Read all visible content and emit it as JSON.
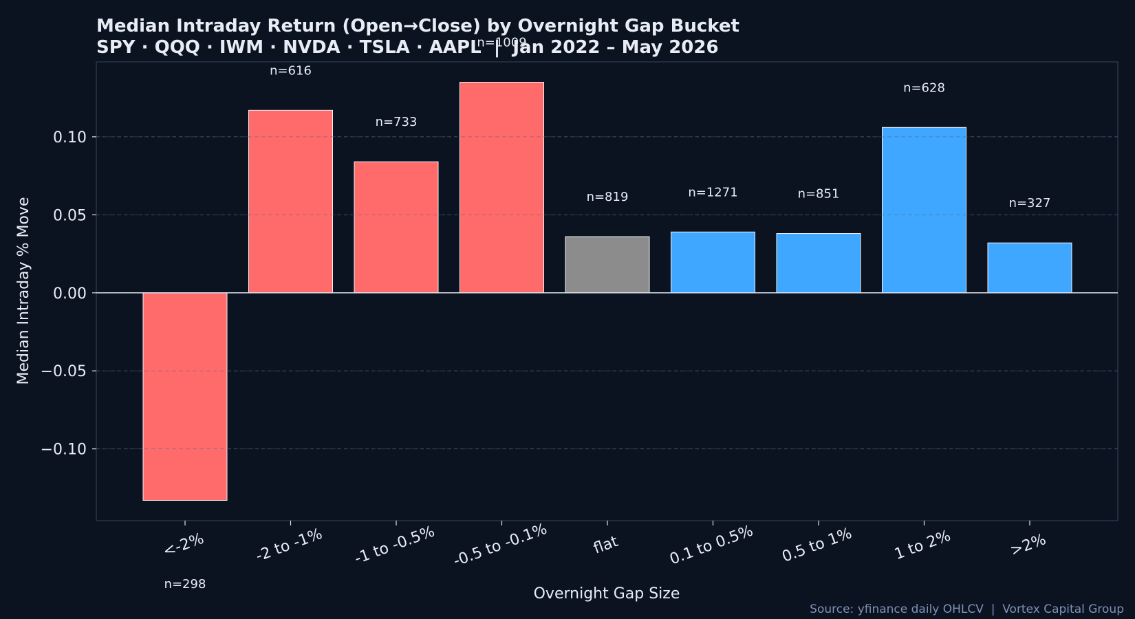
{
  "chart_data": {
    "type": "bar",
    "title": "Median Intraday Return (Open→Close) by Overnight Gap Bucket",
    "subtitle": "SPY · QQQ · IWM · NVDA · TSLA · AAPL  |  Jan 2022 – May 2026",
    "xlabel": "Overnight Gap Size",
    "ylabel": "Median Intraday % Move",
    "categories": [
      "<-2%",
      "-2 to -1%",
      "-1 to -0.5%",
      "-0.5 to -0.1%",
      "flat",
      "0.1 to 0.5%",
      "0.5 to 1%",
      "1 to 2%",
      ">2%"
    ],
    "values": [
      -0.133,
      0.117,
      0.084,
      0.135,
      0.036,
      0.039,
      0.038,
      0.106,
      0.032
    ],
    "sample_labels": [
      "n=298",
      "n=616",
      "n=733",
      "n=1009",
      "n=819",
      "n=1271",
      "n=851",
      "n=628",
      "n=327"
    ],
    "bar_colors": [
      "#ff6b6b",
      "#ff6b6b",
      "#ff6b6b",
      "#ff6b6b",
      "#8c8c8c",
      "#3fa7ff",
      "#3fa7ff",
      "#3fa7ff",
      "#3fa7ff"
    ],
    "ylim": [
      -0.146,
      0.148
    ],
    "yticks": [
      -0.1,
      -0.05,
      0.0,
      0.05,
      0.1
    ],
    "ytick_labels": [
      "−0.10",
      "−0.05",
      "0.00",
      "0.05",
      "0.10"
    ],
    "grid": true,
    "background_color": "#0b1220",
    "source_note": "Source: yfinance daily OHLCV  |  Vortex Capital Group"
  }
}
